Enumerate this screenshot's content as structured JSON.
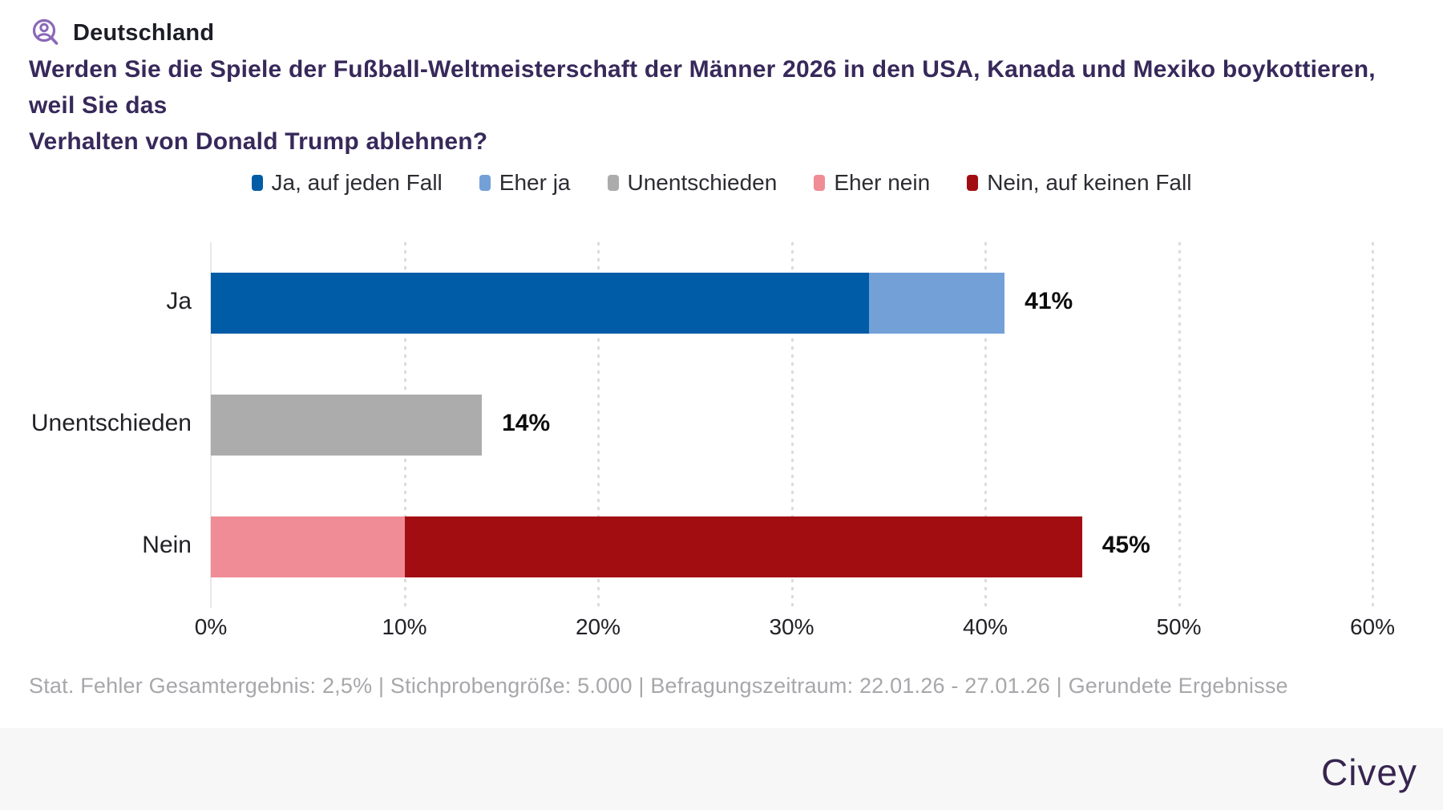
{
  "header": {
    "region": "Deutschland"
  },
  "question": {
    "line1": "Werden Sie die Spiele der Fußball-Weltmeisterschaft der Männer 2026 in den USA, Kanada und Mexiko boykottieren, weil Sie das",
    "line2": "Verhalten von Donald Trump ablehnen?"
  },
  "legend": [
    {
      "label": "Ja, auf jeden Fall",
      "color": "#005ca7"
    },
    {
      "label": "Eher ja",
      "color": "#73a1d7"
    },
    {
      "label": "Unentschieden",
      "color": "#acacac"
    },
    {
      "label": "Eher nein",
      "color": "#ef8c95"
    },
    {
      "label": "Nein, auf keinen Fall",
      "color": "#a20d12"
    }
  ],
  "chart_data": {
    "type": "bar",
    "orientation": "horizontal",
    "stacked": true,
    "categories": [
      "Ja",
      "Unentschieden",
      "Nein"
    ],
    "category_totals": [
      "41%",
      "14%",
      "45%"
    ],
    "series": [
      {
        "name": "Ja, auf jeden Fall",
        "color": "#005ca7",
        "values": [
          34,
          0,
          0
        ]
      },
      {
        "name": "Eher ja",
        "color": "#73a1d7",
        "values": [
          7,
          0,
          0
        ]
      },
      {
        "name": "Unentschieden",
        "color": "#acacac",
        "values": [
          0,
          14,
          0
        ]
      },
      {
        "name": "Eher nein",
        "color": "#ef8c95",
        "values": [
          0,
          0,
          10
        ]
      },
      {
        "name": "Nein, auf keinen Fall",
        "color": "#a20d12",
        "values": [
          0,
          0,
          35
        ]
      }
    ],
    "x_ticks": [
      "0%",
      "10%",
      "20%",
      "30%",
      "40%",
      "50%",
      "60%"
    ],
    "xlim": [
      0,
      60
    ],
    "grid": "dotted-vertical",
    "legend_position": "top"
  },
  "footnote": "Stat. Fehler Gesamtergebnis: 2,5% | Stichprobengröße: 5.000 | Befragungszeitraum: 22.01.26 - 27.01.26 | Gerundete Ergebnisse",
  "footer": {
    "brand": "Civey"
  },
  "colors": {
    "accent_purple": "#8a68b8",
    "question_text": "#37295a",
    "footer_background": "#f7f7f8",
    "brand_text": "#37254f",
    "gridline": "#dcdcdc"
  }
}
